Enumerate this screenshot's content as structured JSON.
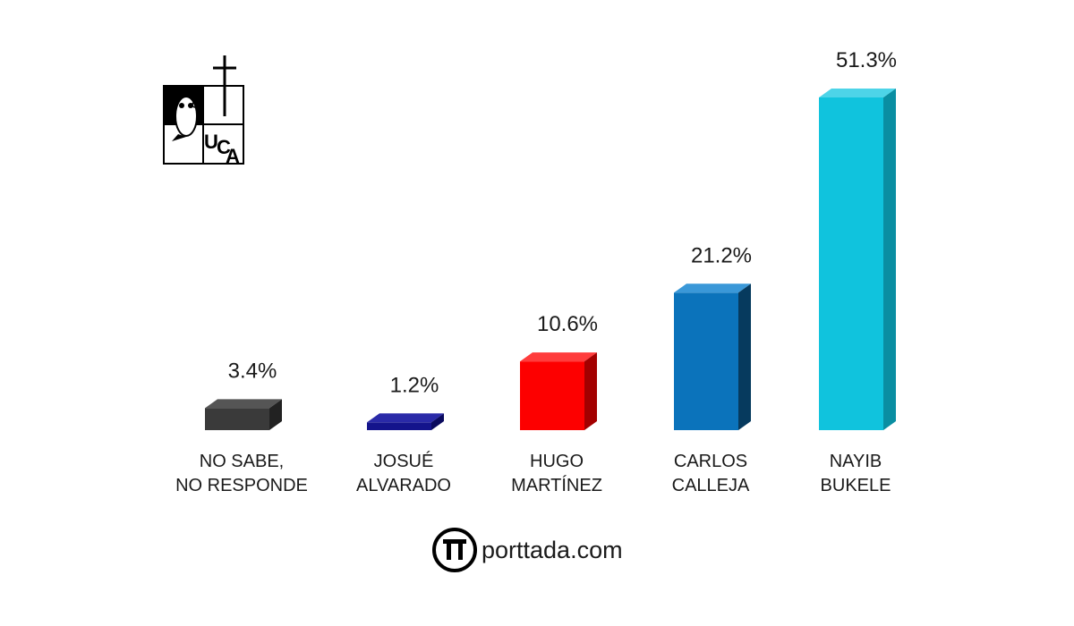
{
  "chart_data": {
    "type": "bar",
    "categories": [
      [
        "NO SABE,",
        "NO RESPONDE"
      ],
      [
        "JOSUÉ",
        "ALVARADO"
      ],
      [
        "HUGO",
        "MARTÍNEZ"
      ],
      [
        "CARLOS",
        "CALLEJA"
      ],
      [
        "NAYIB",
        "BUKELE"
      ]
    ],
    "values": [
      3.4,
      1.2,
      10.6,
      21.2,
      51.3
    ],
    "value_labels": [
      "3.4%",
      "1.2%",
      "10.6%",
      "21.2%",
      "51.3%"
    ],
    "colors": [
      {
        "front": "#3a3a3a",
        "top": "#555555",
        "side": "#222222"
      },
      {
        "front": "#14148c",
        "top": "#2a2aa8",
        "side": "#0a0a5e"
      },
      {
        "front": "#fd0000",
        "top": "#ff3c3c",
        "side": "#a30000"
      },
      {
        "front": "#0b73bb",
        "top": "#3a98d8",
        "side": "#063a5e"
      },
      {
        "front": "#10c3dd",
        "top": "#4dd4e8",
        "side": "#0a8ea2"
      }
    ],
    "ylim": [
      0,
      51.3
    ],
    "grid": false,
    "legend": "none"
  },
  "logo": {
    "name": "uca-logo",
    "text": "UCA"
  },
  "footer": {
    "icon": "pi-icon",
    "text": "porttada.com"
  }
}
